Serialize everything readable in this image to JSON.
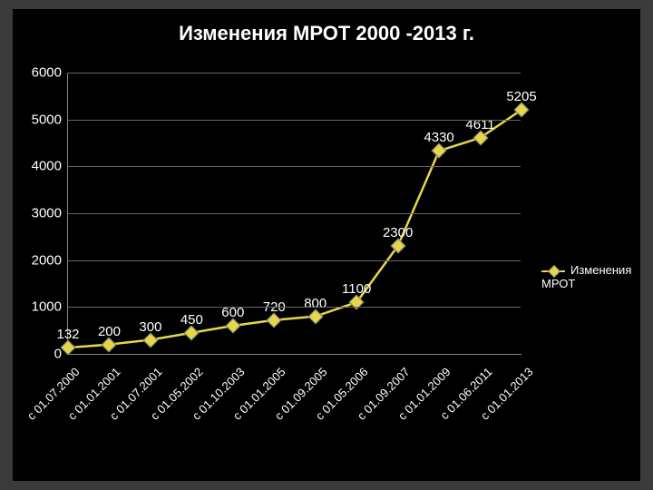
{
  "title": "Изменения МРОТ 2000 -2013 г.",
  "legend_label": "Изменения МРОТ",
  "chart": {
    "type": "line",
    "background_color": "#000000",
    "series_color": "#e6d64a",
    "grid_color": "#666666",
    "text_color": "#ffffff",
    "title_fontsize": 22,
    "label_fontsize": 15,
    "marker_style": "diamond",
    "ylim": [
      0,
      6000
    ],
    "ytick_step": 1000,
    "yticks": [
      0,
      1000,
      2000,
      3000,
      4000,
      5000,
      6000
    ],
    "categories": [
      "с 01.07.2000",
      "с 01.01.2001",
      "с 01.07.2001",
      "с 01.05.2002",
      "с 01.10.2003",
      "с 01.01.2005",
      "с 01.09.2005",
      "с 01.05.2006",
      "с 01.09.2007",
      "с 01.01.2009",
      "с 01.06.2011",
      "с 01.01.2013"
    ],
    "values": [
      132,
      200,
      300,
      450,
      600,
      720,
      800,
      1100,
      2300,
      4330,
      4611,
      5205
    ]
  }
}
